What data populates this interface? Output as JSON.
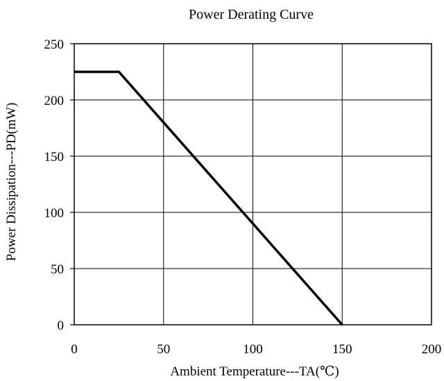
{
  "chart_data": {
    "type": "line",
    "title": "Power Derating Curve",
    "xlabel": "Ambient Temperature---TA(℃)",
    "ylabel": "Power Dissipation---PD(mW)",
    "xlim": [
      0,
      200
    ],
    "ylim": [
      0,
      250
    ],
    "x_ticks": [
      "0",
      "50",
      "100",
      "150",
      "200"
    ],
    "y_ticks": [
      "0",
      "50",
      "100",
      "150",
      "200",
      "250"
    ],
    "grid": true,
    "series": [
      {
        "x": [
          0,
          25,
          150
        ],
        "y": [
          225,
          225,
          0
        ],
        "color": "#000000"
      }
    ]
  }
}
